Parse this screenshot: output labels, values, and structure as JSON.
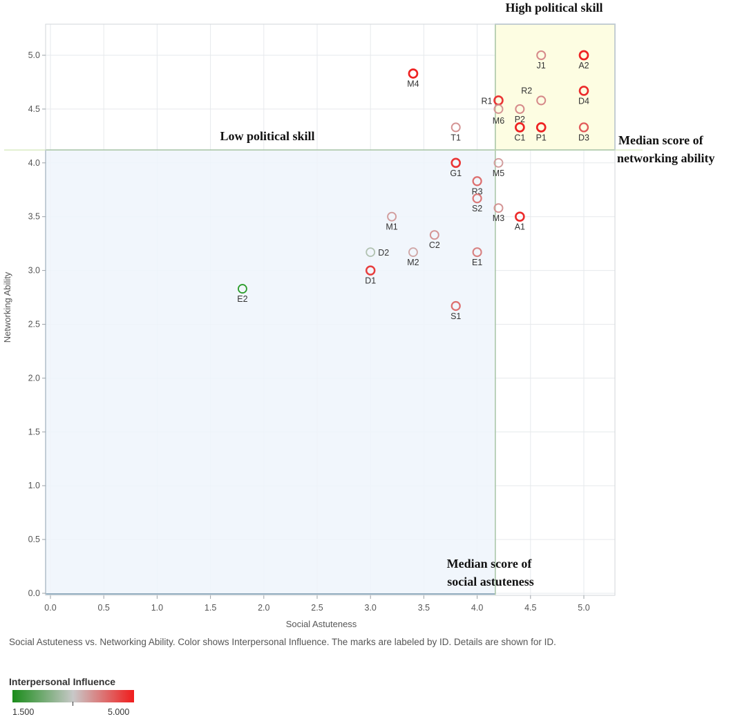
{
  "chart_data": {
    "type": "scatter",
    "xlabel": "Social Astuteness",
    "ylabel": "Networking Ability",
    "xlim": [
      -0.05,
      5.3
    ],
    "ylim": [
      -0.02,
      5.28
    ],
    "xticks": [
      0.0,
      0.5,
      1.0,
      1.5,
      2.0,
      2.5,
      3.0,
      3.5,
      4.0,
      4.5,
      5.0
    ],
    "yticks": [
      0.0,
      0.5,
      1.0,
      1.5,
      2.0,
      2.5,
      3.0,
      3.5,
      4.0,
      4.5,
      5.0
    ],
    "grid": true,
    "median_x": 4.17,
    "median_y": 4.12,
    "color_scale": {
      "min": 1.5,
      "max": 5.0,
      "low_color": "#2a9c2a",
      "mid_color": "#c8c8c8",
      "high_color": "#ee2222"
    },
    "points": [
      {
        "id": "J1",
        "x": 4.6,
        "y": 5.0,
        "influence": 3.9
      },
      {
        "id": "A2",
        "x": 5.0,
        "y": 5.0,
        "influence": 5.0
      },
      {
        "id": "M4",
        "x": 3.4,
        "y": 4.83,
        "influence": 5.0
      },
      {
        "id": "R1",
        "x": 4.2,
        "y": 4.58,
        "influence": 4.8
      },
      {
        "id": "R2",
        "x": 4.6,
        "y": 4.58,
        "influence": 3.9
      },
      {
        "id": "D4",
        "x": 5.0,
        "y": 4.67,
        "influence": 4.9
      },
      {
        "id": "M6",
        "x": 4.2,
        "y": 4.5,
        "influence": 3.8
      },
      {
        "id": "P2",
        "x": 4.4,
        "y": 4.5,
        "influence": 3.9
      },
      {
        "id": "T1",
        "x": 3.8,
        "y": 4.33,
        "influence": 3.8
      },
      {
        "id": "C1",
        "x": 4.4,
        "y": 4.33,
        "influence": 5.0
      },
      {
        "id": "P1",
        "x": 4.6,
        "y": 4.33,
        "influence": 5.0
      },
      {
        "id": "D3",
        "x": 5.0,
        "y": 4.33,
        "influence": 4.4
      },
      {
        "id": "G1",
        "x": 3.8,
        "y": 4.0,
        "influence": 4.8
      },
      {
        "id": "M5",
        "x": 4.2,
        "y": 4.0,
        "influence": 3.7
      },
      {
        "id": "R3",
        "x": 4.0,
        "y": 3.83,
        "influence": 4.2
      },
      {
        "id": "S2",
        "x": 4.0,
        "y": 3.67,
        "influence": 4.1
      },
      {
        "id": "M3",
        "x": 4.2,
        "y": 3.58,
        "influence": 3.8
      },
      {
        "id": "A1",
        "x": 4.4,
        "y": 3.5,
        "influence": 4.9
      },
      {
        "id": "M1",
        "x": 3.2,
        "y": 3.5,
        "influence": 3.7
      },
      {
        "id": "C2",
        "x": 3.6,
        "y": 3.33,
        "influence": 3.8
      },
      {
        "id": "D2",
        "x": 3.0,
        "y": 3.17,
        "influence": 3.0
      },
      {
        "id": "M2",
        "x": 3.4,
        "y": 3.17,
        "influence": 3.6
      },
      {
        "id": "E1",
        "x": 4.0,
        "y": 3.17,
        "influence": 4.0
      },
      {
        "id": "D1",
        "x": 3.0,
        "y": 3.0,
        "influence": 4.7
      },
      {
        "id": "E2",
        "x": 1.8,
        "y": 2.83,
        "influence": 1.5
      },
      {
        "id": "S1",
        "x": 3.8,
        "y": 2.67,
        "influence": 4.2
      }
    ],
    "annotations": {
      "high": "High political skill",
      "low": "Low political skill",
      "median_net_line1": "Median score of",
      "median_net_line2": "networking ability",
      "median_soc_line1": "Median score of",
      "median_soc_line2": "social astuteness"
    }
  },
  "caption": "Social Astuteness vs. Networking Ability.  Color shows Interpersonal Influence.  The marks are labeled by ID. Details are shown for ID.",
  "legend": {
    "title": "Interpersonal Influence",
    "min_label": "1.500",
    "max_label": "5.000"
  }
}
